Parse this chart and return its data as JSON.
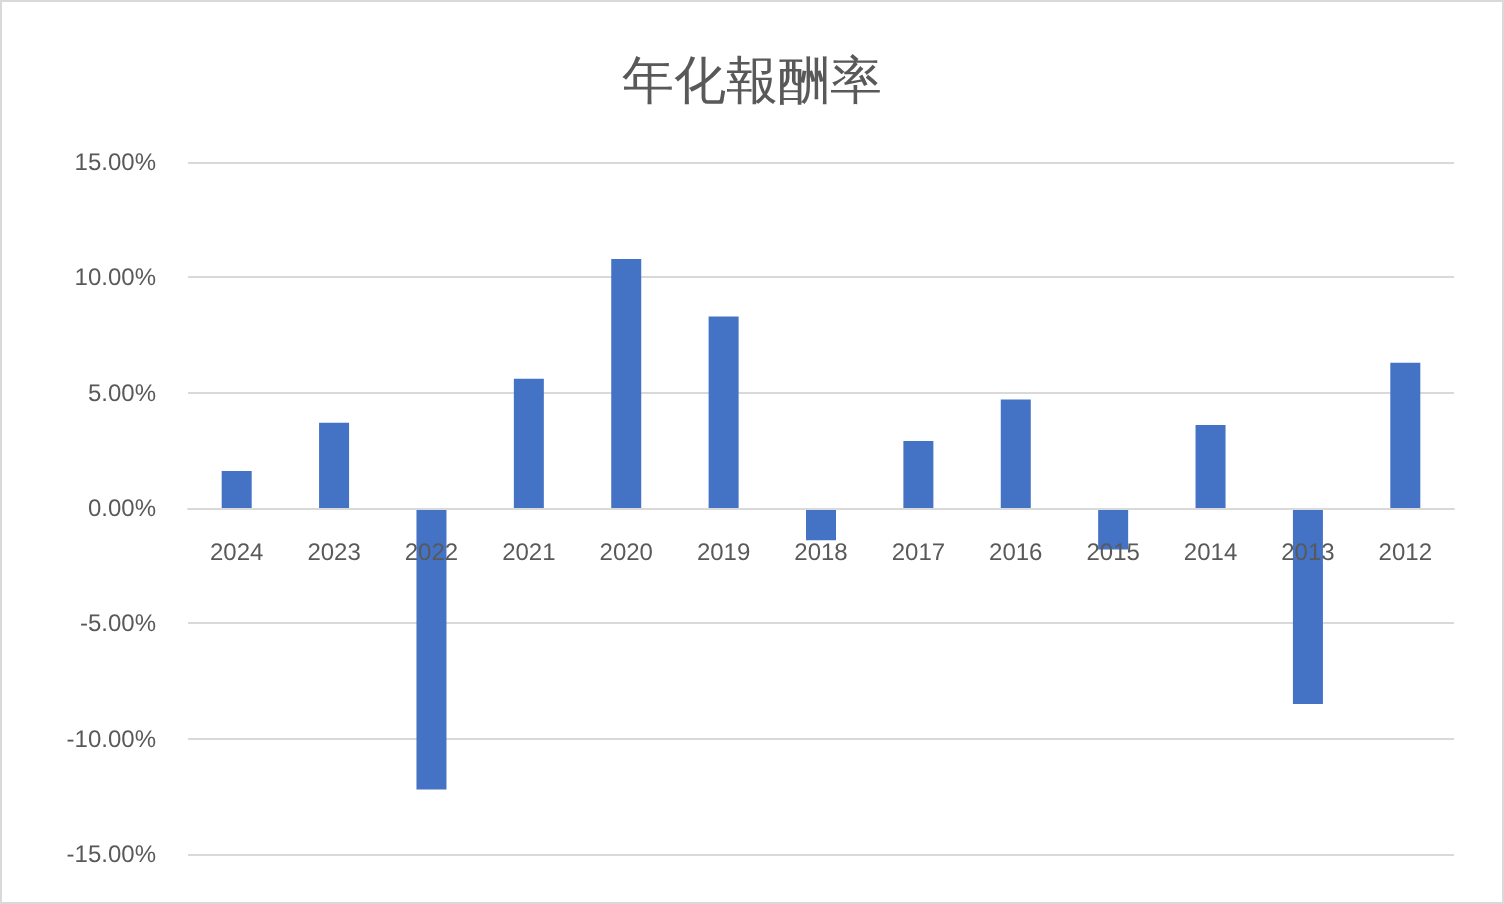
{
  "chart_data": {
    "type": "bar",
    "title": "年化報酬率",
    "categories": [
      "2024",
      "2023",
      "2022",
      "2021",
      "2020",
      "2019",
      "2018",
      "2017",
      "2016",
      "2015",
      "2014",
      "2013",
      "2012"
    ],
    "values": [
      1.6,
      3.7,
      -12.2,
      5.6,
      10.8,
      8.3,
      -1.4,
      2.9,
      4.7,
      -1.8,
      3.6,
      -8.5,
      6.3
    ],
    "color": "#4472c4",
    "ylim": [
      -15,
      15
    ],
    "yticks": [
      {
        "value": -15,
        "label": "-15.00%"
      },
      {
        "value": -10,
        "label": "-10.00%"
      },
      {
        "value": -5,
        "label": "-5.00%"
      },
      {
        "value": 0,
        "label": "0.00%"
      },
      {
        "value": 5,
        "label": "5.00%"
      },
      {
        "value": 10,
        "label": "10.00%"
      },
      {
        "value": 15,
        "label": "15.00%"
      }
    ],
    "grid": "y"
  }
}
